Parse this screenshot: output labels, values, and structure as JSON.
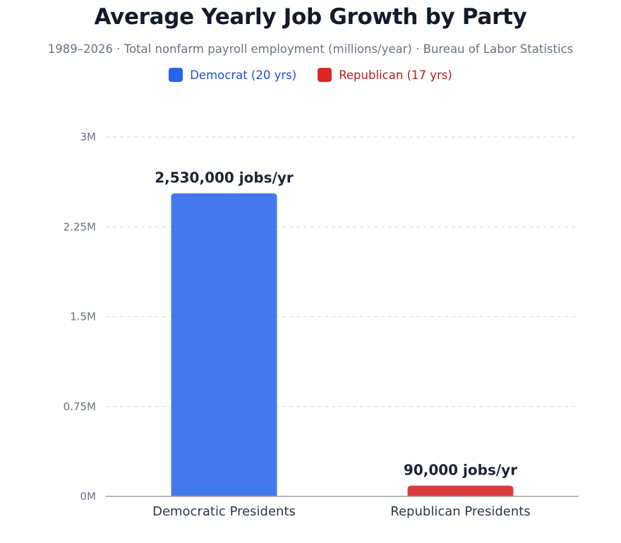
{
  "chart_data": {
    "type": "bar",
    "title": "Average Yearly Job Growth by Party",
    "subtitle": "1989–2026 · Total nonfarm payroll employment (millions/year) · Bureau of Labor Statistics",
    "categories": [
      "Democratic Presidents",
      "Republican Presidents"
    ],
    "values": [
      2530000,
      90000
    ],
    "data_labels": [
      "2,530,000 jobs/yr",
      "90,000 jobs/yr"
    ],
    "colors": [
      "#4479ee",
      "#dc3d3f"
    ],
    "legend": [
      {
        "label": "Democrat (20 yrs)",
        "color": "#2563eb",
        "text_color": "#1d4ed8"
      },
      {
        "label": "Republican (17 yrs)",
        "color": "#dc2626",
        "text_color": "#b91c1c"
      }
    ],
    "yticks": [
      0,
      750000,
      1500000,
      2250000,
      3000000
    ],
    "ytick_labels": [
      "0M",
      "0.75M",
      "1.5M",
      "2.25M",
      "3M"
    ],
    "ylim": [
      0,
      3000000
    ],
    "grid": true,
    "xlabel": "",
    "ylabel": ""
  }
}
